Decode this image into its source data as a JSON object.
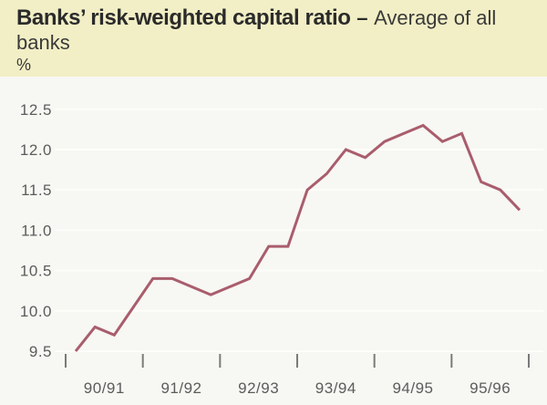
{
  "title": {
    "bold": "Banks’ risk-weighted capital ratio",
    "separator": "–",
    "regular": "Average of all",
    "line2": "banks",
    "unit": "%"
  },
  "colors": {
    "page_bg": "#f2efc6",
    "panel_bg": "#f7f7f3",
    "title_text": "#2b2b2b",
    "axis_text": "#5c5c5c",
    "tick": "#7a7a7a",
    "gridline": "#fdfdfa",
    "line": "#a95d6c"
  },
  "chart_data": {
    "type": "line",
    "title": "Banks’ risk-weighted capital ratio – Average of all banks",
    "ylabel": "%",
    "xlabel": "",
    "categories": [
      "90/91",
      "91/92",
      "92/93",
      "93/94",
      "94/95",
      "95/96"
    ],
    "frequency": "quarterly",
    "series": [
      {
        "name": "Average risk-weighted capital ratio of all banks",
        "values": [
          9.5,
          9.8,
          9.7,
          10.05,
          10.4,
          10.4,
          10.3,
          10.2,
          10.3,
          10.4,
          10.8,
          10.8,
          11.5,
          11.7,
          12.0,
          11.9,
          12.1,
          12.2,
          12.3,
          12.1,
          12.2,
          11.6,
          11.5,
          11.25
        ]
      }
    ],
    "ylim": [
      9.5,
      12.5
    ],
    "yticks": [
      9.5,
      10.0,
      10.5,
      11.0,
      11.5,
      12.0,
      12.5
    ],
    "ytick_labels": [
      "9.5",
      "10.0",
      "10.5",
      "11.0",
      "11.5",
      "12.0",
      "12.5"
    ],
    "grid": "horizontal-faint",
    "legend": "none",
    "line_color": "#a95d6c"
  }
}
